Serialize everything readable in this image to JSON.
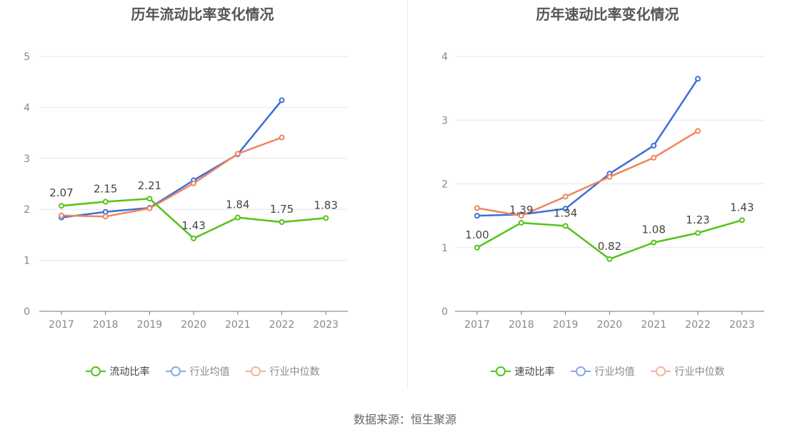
{
  "chart_data": [
    {
      "type": "line",
      "title": "历年流动比率变化情况",
      "categories": [
        "2017",
        "2018",
        "2019",
        "2020",
        "2021",
        "2022",
        "2023"
      ],
      "ylim": [
        0,
        5
      ],
      "yticks": [
        0,
        1,
        2,
        3,
        4,
        5
      ],
      "grid": true,
      "legend_position": "bottom",
      "series": [
        {
          "name": "流动比率",
          "color": "#52c41a",
          "values": [
            2.07,
            2.15,
            2.21,
            1.43,
            1.84,
            1.75,
            1.83
          ],
          "labels": [
            "2.07",
            "2.15",
            "2.21",
            "1.43",
            "1.84",
            "1.75",
            "1.83"
          ]
        },
        {
          "name": "行业均值",
          "color": "#3a6fd8",
          "values": [
            1.84,
            1.95,
            2.03,
            2.57,
            3.08,
            4.14,
            null
          ]
        },
        {
          "name": "行业中位数",
          "color": "#f0845a",
          "values": [
            1.88,
            1.86,
            2.02,
            2.51,
            3.09,
            3.41,
            null
          ]
        }
      ]
    },
    {
      "type": "line",
      "title": "历年速动比率变化情况",
      "categories": [
        "2017",
        "2018",
        "2019",
        "2020",
        "2021",
        "2022",
        "2023"
      ],
      "ylim": [
        0,
        4
      ],
      "yticks": [
        0,
        1,
        2,
        3,
        4
      ],
      "grid": true,
      "legend_position": "bottom",
      "series": [
        {
          "name": "速动比率",
          "color": "#52c41a",
          "values": [
            1.0,
            1.39,
            1.34,
            0.82,
            1.08,
            1.23,
            1.43
          ],
          "labels": [
            "1.00",
            "1.39",
            "1.34",
            "0.82",
            "1.08",
            "1.23",
            "1.43"
          ]
        },
        {
          "name": "行业均值",
          "color": "#3a6fd8",
          "values": [
            1.5,
            1.52,
            1.61,
            2.16,
            2.6,
            3.65,
            null
          ]
        },
        {
          "name": "行业中位数",
          "color": "#f0845a",
          "values": [
            1.62,
            1.5,
            1.8,
            2.11,
            2.41,
            2.83,
            null
          ]
        }
      ]
    }
  ],
  "source": "数据来源：恒生聚源"
}
